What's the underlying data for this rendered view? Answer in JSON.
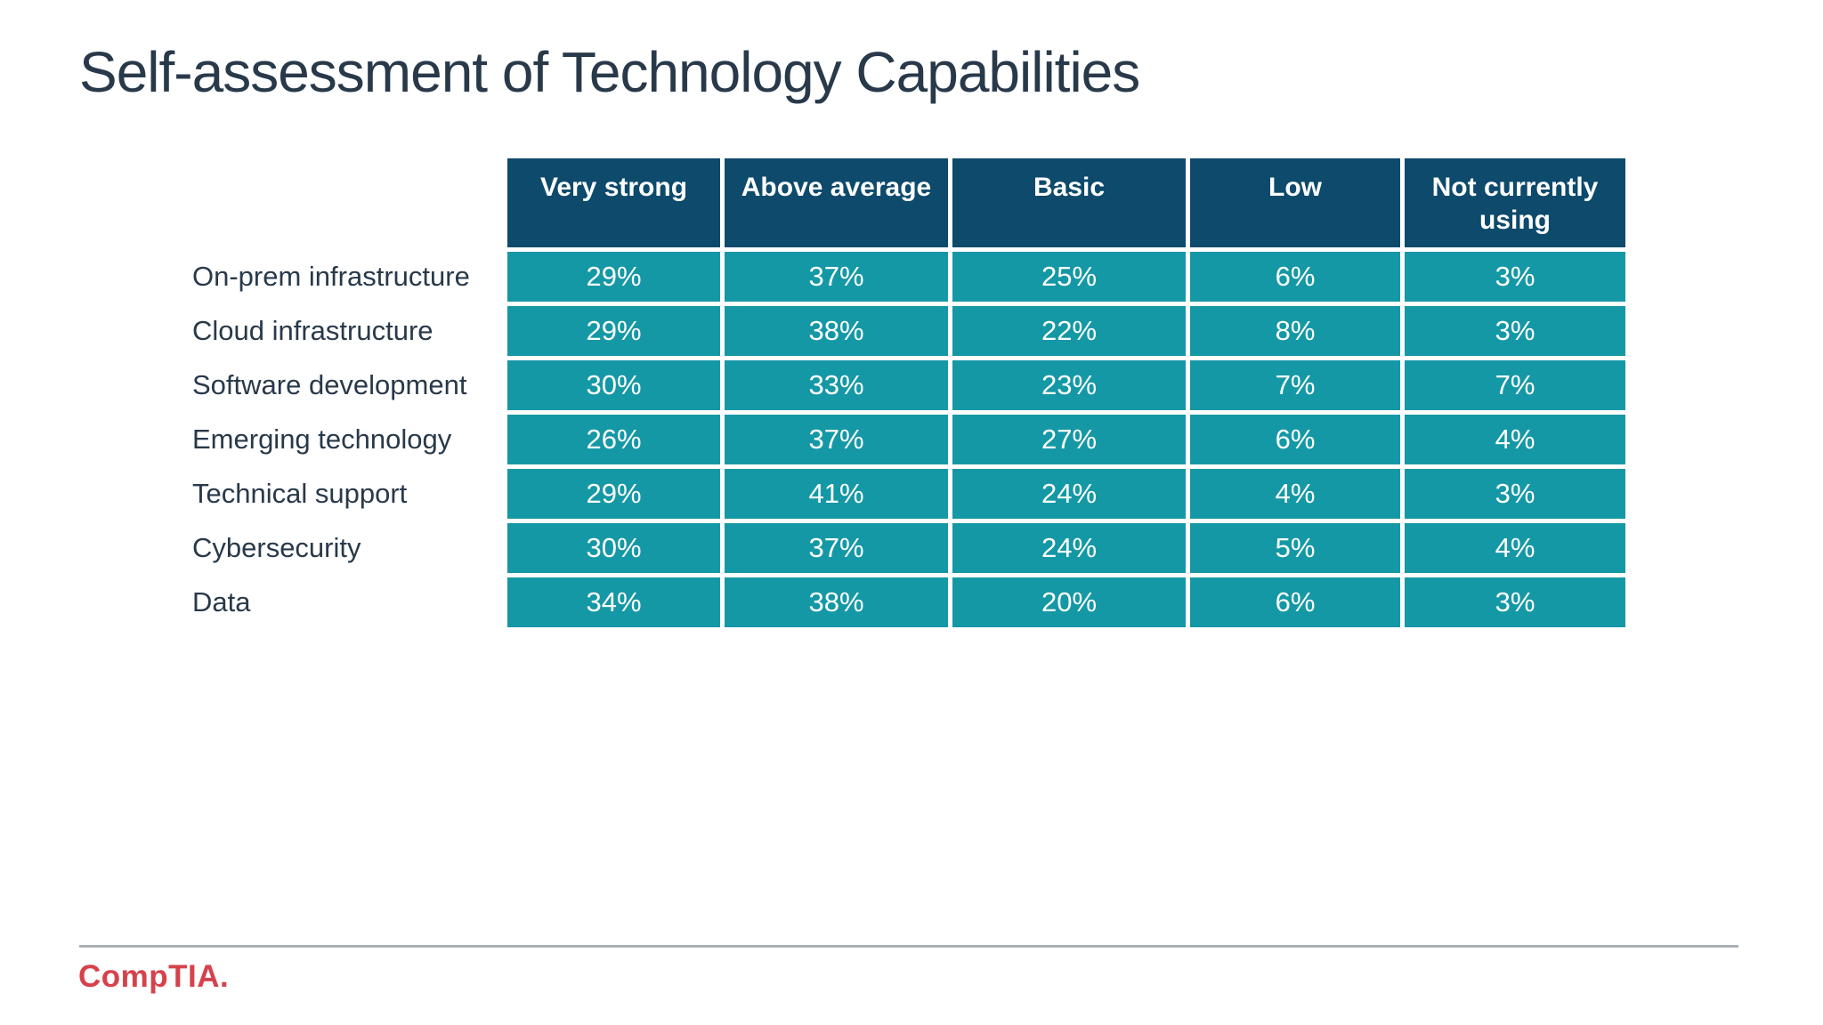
{
  "slide": {
    "title": "Self-assessment of Technology Capabilities",
    "logo_text": "CompTIA."
  },
  "colors": {
    "header_bg": "#0d4a6c",
    "cell_bg": "#1598a5",
    "cell_text": "#ffffff",
    "title_text": "#28394a",
    "divider": "#a9afb6",
    "logo_red": "#d5424c"
  },
  "table": {
    "columns": [
      "Very strong",
      "Above average",
      "Basic",
      "Low",
      "Not currently using"
    ],
    "rows": [
      {
        "label": "On-prem infrastructure",
        "values": [
          "29%",
          "37%",
          "25%",
          "6%",
          "3%"
        ]
      },
      {
        "label": "Cloud infrastructure",
        "values": [
          "29%",
          "38%",
          "22%",
          "8%",
          "3%"
        ]
      },
      {
        "label": "Software development",
        "values": [
          "30%",
          "33%",
          "23%",
          "7%",
          "7%"
        ]
      },
      {
        "label": "Emerging technology",
        "values": [
          "26%",
          "37%",
          "27%",
          "6%",
          "4%"
        ]
      },
      {
        "label": "Technical support",
        "values": [
          "29%",
          "41%",
          "24%",
          "4%",
          "3%"
        ]
      },
      {
        "label": "Cybersecurity",
        "values": [
          "30%",
          "37%",
          "24%",
          "5%",
          "4%"
        ]
      },
      {
        "label": "Data",
        "values": [
          "34%",
          "38%",
          "20%",
          "6%",
          "3%"
        ]
      }
    ]
  },
  "chart_data": {
    "type": "table",
    "title": "Self-assessment of Technology Capabilities",
    "unit": "%",
    "categories": [
      "On-prem infrastructure",
      "Cloud infrastructure",
      "Software development",
      "Emerging technology",
      "Technical support",
      "Cybersecurity",
      "Data"
    ],
    "series": [
      {
        "name": "Very strong",
        "values": [
          29,
          29,
          30,
          26,
          29,
          30,
          34
        ]
      },
      {
        "name": "Above average",
        "values": [
          37,
          38,
          33,
          37,
          41,
          37,
          38
        ]
      },
      {
        "name": "Basic",
        "values": [
          25,
          22,
          23,
          27,
          24,
          24,
          20
        ]
      },
      {
        "name": "Low",
        "values": [
          6,
          8,
          7,
          6,
          4,
          5,
          6
        ]
      },
      {
        "name": "Not currently using",
        "values": [
          3,
          3,
          7,
          4,
          3,
          4,
          3
        ]
      }
    ],
    "layout": {
      "header_position": "top",
      "row_labels_position": "left",
      "grid": "white-gaps"
    }
  }
}
